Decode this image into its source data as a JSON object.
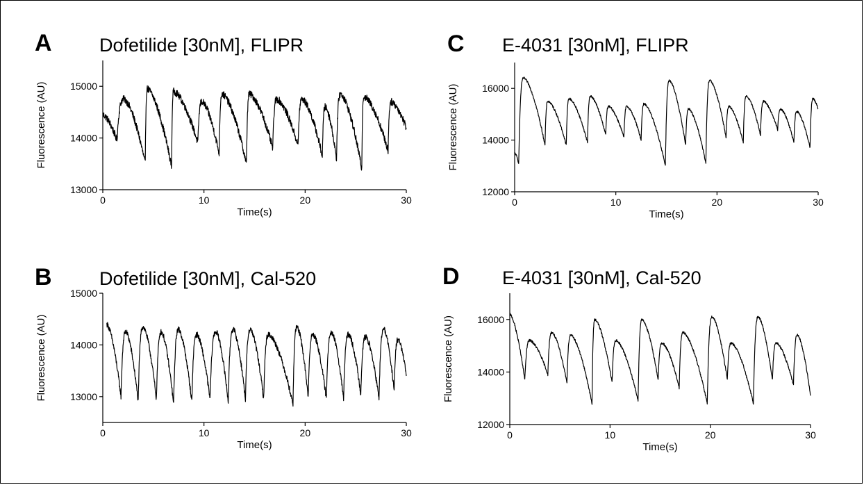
{
  "chart_data": [
    {
      "panel": "A",
      "type": "line",
      "title": "Dofetilide [30nM],  FLIPR",
      "xlabel": "Time(s)",
      "ylabel": "Fluorescence (AU)",
      "xlim": [
        0,
        30
      ],
      "ylim": [
        13000,
        15500
      ],
      "xticks": [
        0,
        10,
        20,
        30
      ],
      "yticks": [
        13000,
        14000,
        15000
      ],
      "baseline": 14000,
      "noise": 70,
      "peaks": [
        {
          "t": 0.0,
          "v": 14450
        },
        {
          "t": 2.1,
          "v": 14750
        },
        {
          "t": 4.4,
          "v": 14950
        },
        {
          "t": 7.0,
          "v": 14900
        },
        {
          "t": 9.8,
          "v": 14700
        },
        {
          "t": 11.8,
          "v": 14850
        },
        {
          "t": 14.5,
          "v": 14850
        },
        {
          "t": 17.2,
          "v": 14750
        },
        {
          "t": 19.7,
          "v": 14750
        },
        {
          "t": 22.0,
          "v": 14600
        },
        {
          "t": 23.5,
          "v": 14850
        },
        {
          "t": 25.8,
          "v": 14800
        },
        {
          "t": 28.5,
          "v": 14700
        }
      ],
      "troughs": [
        {
          "t": 1.4,
          "v": 13950
        },
        {
          "t": 4.2,
          "v": 13500
        },
        {
          "t": 6.8,
          "v": 13450
        },
        {
          "t": 9.4,
          "v": 13900
        },
        {
          "t": 11.5,
          "v": 13700
        },
        {
          "t": 14.2,
          "v": 13500
        },
        {
          "t": 16.8,
          "v": 13800
        },
        {
          "t": 19.3,
          "v": 13850
        },
        {
          "t": 21.7,
          "v": 13650
        },
        {
          "t": 23.1,
          "v": 13600
        },
        {
          "t": 25.6,
          "v": 13400
        },
        {
          "t": 28.2,
          "v": 13750
        },
        {
          "t": 30.0,
          "v": 14200
        }
      ]
    },
    {
      "panel": "B",
      "type": "line",
      "title": "Dofetilide [30nM],  Cal-520",
      "xlabel": "Time(s)",
      "ylabel": "Fluorescence (AU)",
      "xlim": [
        0,
        30
      ],
      "ylim": [
        12500,
        15000
      ],
      "xticks": [
        0,
        10,
        20,
        30
      ],
      "yticks": [
        13000,
        14000,
        15000
      ],
      "baseline": 13500,
      "noise": 55,
      "peaks": [
        {
          "t": 0.4,
          "v": 14400
        },
        {
          "t": 2.3,
          "v": 14250
        },
        {
          "t": 4.0,
          "v": 14350
        },
        {
          "t": 5.8,
          "v": 14250
        },
        {
          "t": 7.5,
          "v": 14300
        },
        {
          "t": 9.3,
          "v": 14200
        },
        {
          "t": 11.2,
          "v": 14250
        },
        {
          "t": 12.9,
          "v": 14300
        },
        {
          "t": 14.6,
          "v": 14300
        },
        {
          "t": 16.4,
          "v": 14200
        },
        {
          "t": 19.2,
          "v": 14350
        },
        {
          "t": 20.8,
          "v": 14200
        },
        {
          "t": 22.6,
          "v": 14250
        },
        {
          "t": 24.3,
          "v": 14200
        },
        {
          "t": 26.0,
          "v": 14150
        },
        {
          "t": 27.8,
          "v": 14300
        },
        {
          "t": 29.2,
          "v": 14100
        }
      ],
      "troughs": [
        {
          "t": 1.8,
          "v": 13000
        },
        {
          "t": 3.5,
          "v": 12900
        },
        {
          "t": 5.3,
          "v": 12950
        },
        {
          "t": 7.0,
          "v": 12850
        },
        {
          "t": 8.8,
          "v": 12900
        },
        {
          "t": 10.6,
          "v": 12950
        },
        {
          "t": 12.4,
          "v": 12900
        },
        {
          "t": 14.1,
          "v": 12950
        },
        {
          "t": 15.9,
          "v": 12950
        },
        {
          "t": 18.8,
          "v": 12850
        },
        {
          "t": 20.3,
          "v": 13000
        },
        {
          "t": 22.1,
          "v": 12950
        },
        {
          "t": 23.8,
          "v": 12950
        },
        {
          "t": 25.5,
          "v": 13050
        },
        {
          "t": 27.3,
          "v": 12950
        },
        {
          "t": 28.8,
          "v": 13100
        },
        {
          "t": 30.0,
          "v": 13400
        }
      ]
    },
    {
      "panel": "C",
      "type": "line",
      "title": "E-4031 [30nM],  FLIPR",
      "xlabel": "Time(s)",
      "ylabel": "Fluorescence (AU)",
      "xlim": [
        0,
        30
      ],
      "ylim": [
        12000,
        17000
      ],
      "xticks": [
        0,
        10,
        20,
        30
      ],
      "yticks": [
        12000,
        14000,
        16000
      ],
      "baseline": 14500,
      "noise": 40,
      "peaks": [
        {
          "t": 0.0,
          "v": 13500
        },
        {
          "t": 0.9,
          "v": 16400
        },
        {
          "t": 3.3,
          "v": 15500
        },
        {
          "t": 5.4,
          "v": 15600
        },
        {
          "t": 7.5,
          "v": 15700
        },
        {
          "t": 9.3,
          "v": 15300
        },
        {
          "t": 11.1,
          "v": 15300
        },
        {
          "t": 12.8,
          "v": 15400
        },
        {
          "t": 15.3,
          "v": 16300
        },
        {
          "t": 17.2,
          "v": 15200
        },
        {
          "t": 19.3,
          "v": 16300
        },
        {
          "t": 21.2,
          "v": 15300
        },
        {
          "t": 22.9,
          "v": 15700
        },
        {
          "t": 24.6,
          "v": 15500
        },
        {
          "t": 26.3,
          "v": 15200
        },
        {
          "t": 27.9,
          "v": 15100
        },
        {
          "t": 29.5,
          "v": 15600
        }
      ],
      "troughs": [
        {
          "t": 0.4,
          "v": 13100
        },
        {
          "t": 3.0,
          "v": 13800
        },
        {
          "t": 5.1,
          "v": 13800
        },
        {
          "t": 7.2,
          "v": 13900
        },
        {
          "t": 9.0,
          "v": 14200
        },
        {
          "t": 10.8,
          "v": 14100
        },
        {
          "t": 12.5,
          "v": 14000
        },
        {
          "t": 14.9,
          "v": 13000
        },
        {
          "t": 16.9,
          "v": 13800
        },
        {
          "t": 18.9,
          "v": 13100
        },
        {
          "t": 20.9,
          "v": 14100
        },
        {
          "t": 22.6,
          "v": 13900
        },
        {
          "t": 24.3,
          "v": 14200
        },
        {
          "t": 26.0,
          "v": 14400
        },
        {
          "t": 27.6,
          "v": 13900
        },
        {
          "t": 29.2,
          "v": 13700
        },
        {
          "t": 30.0,
          "v": 15200
        }
      ]
    },
    {
      "panel": "D",
      "type": "line",
      "title": "E-4031 [30nM],  Cal-520",
      "xlabel": "Time(s)",
      "ylabel": "Fluorescence (AU)",
      "xlim": [
        0,
        30
      ],
      "ylim": [
        12000,
        17000
      ],
      "xticks": [
        0,
        10,
        20,
        30
      ],
      "yticks": [
        12000,
        14000,
        16000
      ],
      "baseline": 14000,
      "noise": 45,
      "peaks": [
        {
          "t": 0.0,
          "v": 16200
        },
        {
          "t": 2.0,
          "v": 15200
        },
        {
          "t": 4.2,
          "v": 15500
        },
        {
          "t": 6.1,
          "v": 15400
        },
        {
          "t": 8.5,
          "v": 16000
        },
        {
          "t": 10.6,
          "v": 15200
        },
        {
          "t": 13.2,
          "v": 16000
        },
        {
          "t": 15.2,
          "v": 15100
        },
        {
          "t": 17.3,
          "v": 15500
        },
        {
          "t": 20.2,
          "v": 16100
        },
        {
          "t": 22.1,
          "v": 15100
        },
        {
          "t": 24.8,
          "v": 16100
        },
        {
          "t": 26.6,
          "v": 15100
        },
        {
          "t": 28.7,
          "v": 15400
        }
      ],
      "troughs": [
        {
          "t": 1.5,
          "v": 13700
        },
        {
          "t": 3.8,
          "v": 13900
        },
        {
          "t": 5.7,
          "v": 13600
        },
        {
          "t": 8.2,
          "v": 12800
        },
        {
          "t": 10.2,
          "v": 13600
        },
        {
          "t": 12.8,
          "v": 12900
        },
        {
          "t": 14.8,
          "v": 13700
        },
        {
          "t": 16.9,
          "v": 13400
        },
        {
          "t": 19.7,
          "v": 12800
        },
        {
          "t": 21.7,
          "v": 13700
        },
        {
          "t": 24.3,
          "v": 12800
        },
        {
          "t": 26.2,
          "v": 13700
        },
        {
          "t": 28.3,
          "v": 13500
        },
        {
          "t": 30.0,
          "v": 13100
        }
      ]
    }
  ]
}
